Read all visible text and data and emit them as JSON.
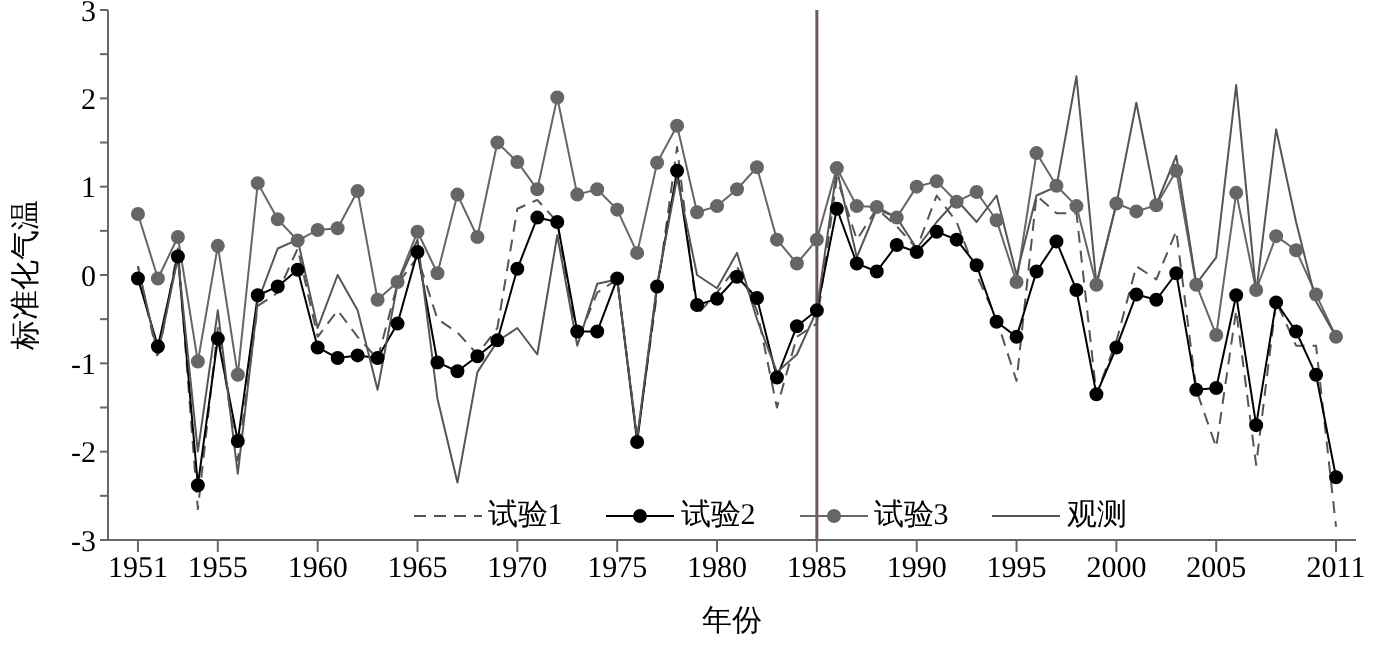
{
  "chart_data": {
    "type": "line",
    "xlabel": "年份",
    "ylabel": "标准化气温",
    "x": [
      1951,
      1952,
      1953,
      1954,
      1955,
      1956,
      1957,
      1958,
      1959,
      1960,
      1961,
      1962,
      1963,
      1964,
      1965,
      1966,
      1967,
      1968,
      1969,
      1970,
      1971,
      1972,
      1973,
      1974,
      1975,
      1976,
      1977,
      1978,
      1979,
      1980,
      1981,
      1982,
      1983,
      1984,
      1985,
      1986,
      1987,
      1988,
      1989,
      1990,
      1991,
      1992,
      1993,
      1994,
      1995,
      1996,
      1997,
      1998,
      1999,
      2000,
      2001,
      2002,
      2003,
      2004,
      2005,
      2006,
      2007,
      2008,
      2009,
      2010,
      2011
    ],
    "series": [
      {
        "name": "试验1",
        "color": "#555555",
        "line_style": "dashed",
        "marker": "none",
        "values": [
          0.1,
          -0.95,
          0.3,
          -2.65,
          -0.6,
          -2.1,
          -0.35,
          -0.2,
          0.3,
          -0.7,
          -0.4,
          -0.7,
          -0.95,
          -0.1,
          0.2,
          -0.5,
          -0.65,
          -0.9,
          -0.6,
          0.75,
          0.85,
          0.6,
          -0.75,
          -0.2,
          -0.05,
          -1.85,
          -0.2,
          1.45,
          -0.45,
          -0.2,
          0.1,
          -0.4,
          -1.5,
          -0.7,
          -0.55,
          1.1,
          0.4,
          0.75,
          0.55,
          0.3,
          0.9,
          0.6,
          0.0,
          -0.5,
          -1.2,
          0.9,
          0.7,
          0.7,
          -1.35,
          -0.75,
          0.1,
          -0.05,
          0.5,
          -1.3,
          -1.95,
          -0.4,
          -2.15,
          -0.3,
          -0.8,
          -0.8,
          -2.85
        ]
      },
      {
        "name": "试验2",
        "color": "#000000",
        "line_style": "solid",
        "marker": "circle",
        "values": [
          -0.04,
          -0.81,
          0.21,
          -2.38,
          -0.72,
          -1.88,
          -0.23,
          -0.13,
          0.06,
          -0.82,
          -0.94,
          -0.91,
          -0.94,
          -0.55,
          0.26,
          -0.99,
          -1.09,
          -0.92,
          -0.74,
          0.07,
          0.65,
          0.6,
          -0.64,
          -0.64,
          -0.04,
          -1.89,
          -0.13,
          1.18,
          -0.34,
          -0.27,
          -0.02,
          -0.26,
          -1.16,
          -0.58,
          -0.4,
          0.75,
          0.13,
          0.04,
          0.34,
          0.26,
          0.49,
          0.4,
          0.11,
          -0.53,
          -0.7,
          0.04,
          0.38,
          -0.17,
          -1.35,
          -0.82,
          -0.22,
          -0.28,
          0.02,
          -1.3,
          -1.28,
          -0.23,
          -1.7,
          -0.31,
          -0.64,
          -1.13,
          -2.29
        ]
      },
      {
        "name": "试验3",
        "color": "#666666",
        "line_style": "solid",
        "marker": "circle",
        "values": [
          0.69,
          -0.04,
          0.43,
          -0.98,
          0.33,
          -1.13,
          1.04,
          0.63,
          0.39,
          0.51,
          0.53,
          0.95,
          -0.28,
          -0.08,
          0.49,
          0.02,
          0.91,
          0.43,
          1.5,
          1.28,
          0.97,
          2.01,
          0.91,
          0.97,
          0.74,
          0.25,
          1.27,
          1.69,
          0.71,
          0.78,
          0.97,
          1.22,
          0.4,
          0.13,
          0.4,
          1.21,
          0.78,
          0.77,
          0.65,
          1.0,
          1.06,
          0.83,
          0.94,
          0.62,
          -0.08,
          1.38,
          1.01,
          0.78,
          -0.11,
          0.81,
          0.72,
          0.79,
          1.18,
          -0.11,
          -0.68,
          0.93,
          -0.17,
          0.44,
          0.28,
          -0.22,
          -0.7
        ]
      },
      {
        "name": "观测",
        "color": "#555555",
        "line_style": "solid",
        "marker": "none",
        "values": [
          0.1,
          -0.9,
          0.2,
          -2.0,
          -0.4,
          -2.25,
          -0.3,
          0.3,
          0.4,
          -0.6,
          0.0,
          -0.4,
          -1.3,
          -0.1,
          0.4,
          -1.4,
          -2.35,
          -1.1,
          -0.75,
          -0.6,
          -0.9,
          0.45,
          -0.8,
          -0.1,
          -0.05,
          -1.85,
          -0.1,
          1.1,
          0.0,
          -0.15,
          0.25,
          -0.5,
          -1.1,
          -0.9,
          -0.4,
          1.2,
          0.2,
          0.75,
          0.65,
          0.3,
          0.6,
          0.85,
          0.6,
          0.9,
          0.0,
          0.9,
          1.0,
          2.25,
          -0.1,
          0.8,
          1.95,
          0.8,
          1.35,
          -0.1,
          0.2,
          2.15,
          -0.2,
          1.65,
          0.6,
          -0.3,
          -0.7
        ]
      }
    ],
    "xlim": [
      1949.5,
      2012
    ],
    "xticks": [
      1951,
      1955,
      1960,
      1965,
      1970,
      1975,
      1980,
      1985,
      1990,
      1995,
      2000,
      2005,
      2011
    ],
    "ylim": [
      -3,
      3
    ],
    "yticks": [
      -3,
      {
        "value": -2.5,
        "label": null
      },
      -2,
      {
        "value": -1.5,
        "label": null
      },
      -1,
      {
        "value": -0.5,
        "label": null
      },
      0,
      {
        "value": 0.5,
        "label": null
      },
      1,
      {
        "value": 1.5,
        "label": null
      },
      2,
      {
        "value": 2.5,
        "label": null
      },
      3
    ],
    "ref_lines": [
      {
        "axis": "x",
        "value": 1985,
        "color": "#6b5a55",
        "line_style": "solid"
      }
    ],
    "grid": false,
    "legend": "bottom"
  }
}
